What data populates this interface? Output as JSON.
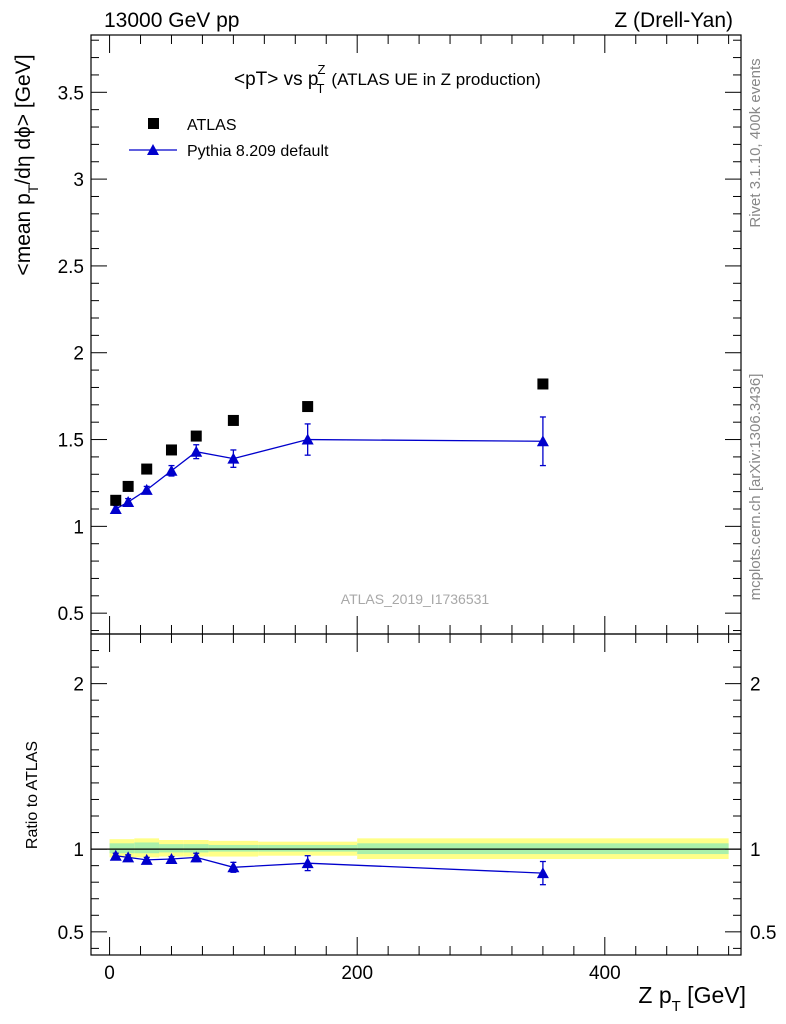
{
  "header": {
    "left": "13000 GeV pp",
    "right": "Z (Drell-Yan)"
  },
  "side_labels": {
    "rivet": "Rivet 3.1.10,  400k events",
    "mcplots": "mcplots.cern.ch [arXiv:1306.3436]"
  },
  "chart_data": [
    {
      "type": "scatter",
      "panel": "main",
      "title": {
        "main": "<pT> vs p",
        "sup": "Z",
        "sub": "T",
        "suffix": "(ATLAS UE in Z production)"
      },
      "ylabel": {
        "a": "<mean p",
        "sub1": "T",
        "b": "/dη dϕ> [GeV]"
      },
      "ylim": [
        0.38,
        3.83
      ],
      "xlim": [
        -15,
        510
      ],
      "yticks": [
        0.5,
        1,
        1.5,
        2,
        2.5,
        3,
        3.5
      ],
      "ytick_labels": [
        "0.5",
        "1",
        "1.5",
        "2",
        "2.5",
        "3",
        "3.5"
      ],
      "watermark": "ATLAS_2019_I1736531",
      "legend": [
        "ATLAS",
        "Pythia 8.209 default"
      ],
      "series": [
        {
          "name": "ATLAS",
          "marker": "square",
          "color": "#000000",
          "x": [
            5,
            15,
            30,
            50,
            70,
            100,
            160,
            350
          ],
          "y": [
            1.15,
            1.23,
            1.33,
            1.44,
            1.52,
            1.61,
            1.69,
            1.82
          ]
        },
        {
          "name": "Pythia 8.209 default",
          "marker": "triangle",
          "color": "#0000cc",
          "x": [
            5,
            15,
            30,
            50,
            70,
            100,
            160,
            350
          ],
          "y": [
            1.1,
            1.14,
            1.21,
            1.32,
            1.43,
            1.39,
            1.5,
            1.49
          ],
          "yerr": [
            0.02,
            0.02,
            0.02,
            0.03,
            0.04,
            0.05,
            0.09,
            0.14
          ]
        }
      ]
    },
    {
      "type": "scatter",
      "panel": "ratio",
      "ylabel": "Ratio to ATLAS",
      "ylim": [
        0.36,
        2.3
      ],
      "xlim": [
        -15,
        510
      ],
      "yticks": [
        0.5,
        1,
        2
      ],
      "ytick_labels": [
        "0.5",
        "1",
        "2"
      ],
      "xticks": [
        0,
        200,
        400
      ],
      "xtick_labels": [
        "0",
        "200",
        "400"
      ],
      "xlabel": {
        "a": "Z p",
        "sub": "T",
        "b": " [GeV]"
      },
      "reference_line": 1,
      "uncertainty_bands": [
        {
          "x0": 0,
          "x1": 20,
          "yellow": [
            0.95,
            1.06
          ],
          "green": [
            0.975,
            1.035
          ]
        },
        {
          "x0": 20,
          "x1": 40,
          "yellow": [
            0.95,
            1.065
          ],
          "green": [
            0.975,
            1.04
          ]
        },
        {
          "x0": 40,
          "x1": 60,
          "yellow": [
            0.955,
            1.055
          ],
          "green": [
            0.98,
            1.03
          ]
        },
        {
          "x0": 60,
          "x1": 80,
          "yellow": [
            0.955,
            1.055
          ],
          "green": [
            0.98,
            1.03
          ]
        },
        {
          "x0": 80,
          "x1": 120,
          "yellow": [
            0.955,
            1.05
          ],
          "green": [
            0.985,
            1.025
          ]
        },
        {
          "x0": 120,
          "x1": 200,
          "yellow": [
            0.96,
            1.045
          ],
          "green": [
            0.985,
            1.025
          ]
        },
        {
          "x0": 200,
          "x1": 500,
          "yellow": [
            0.94,
            1.065
          ],
          "green": [
            0.97,
            1.035
          ]
        }
      ],
      "series": [
        {
          "name": "Pythia 8.209 default",
          "marker": "triangle",
          "color": "#0000cc",
          "x": [
            5,
            15,
            30,
            50,
            70,
            100,
            160,
            350
          ],
          "y": [
            0.96,
            0.95,
            0.935,
            0.94,
            0.95,
            0.89,
            0.915,
            0.855
          ],
          "yerr": [
            0.015,
            0.015,
            0.015,
            0.015,
            0.025,
            0.03,
            0.045,
            0.07
          ]
        }
      ]
    }
  ]
}
